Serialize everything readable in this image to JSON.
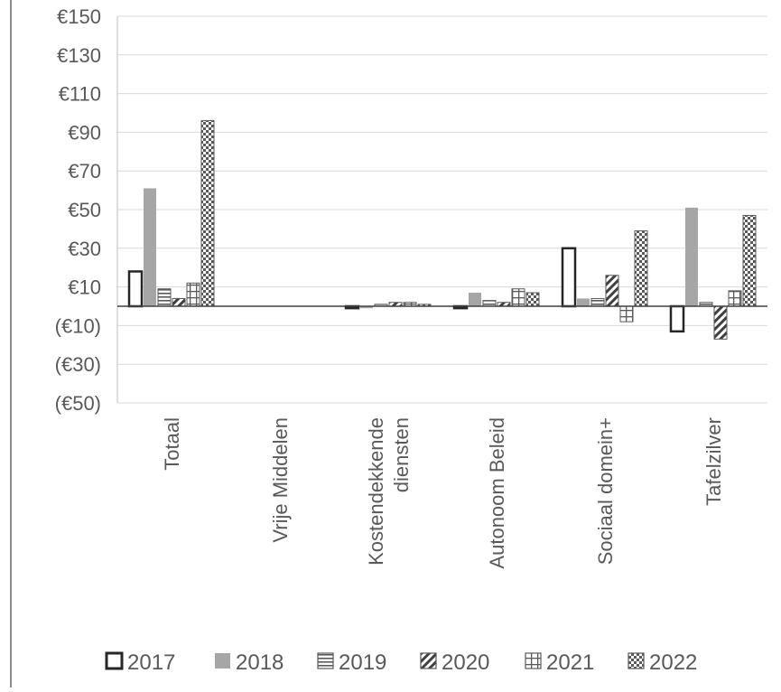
{
  "chart_data": {
    "type": "bar",
    "title": "",
    "xlabel": "",
    "ylabel": "",
    "categories": [
      "Totaal",
      "Vrije Middelen",
      "Kostendekkende diensten",
      "Autonoom Beleid",
      "Sociaal domein+",
      "Tafelzilver"
    ],
    "category_label_lines": [
      [
        "Totaal"
      ],
      [
        "Vrije Middelen"
      ],
      [
        "Kostendekkende",
        "diensten"
      ],
      [
        "Autonoom Beleid"
      ],
      [
        "Sociaal domein+"
      ],
      [
        "Tafelzilver"
      ]
    ],
    "series": [
      {
        "name": "2017",
        "pattern": "outline",
        "color": "#262626",
        "values": [
          18,
          0,
          -1,
          -1,
          30,
          -13
        ]
      },
      {
        "name": "2018",
        "pattern": "solid",
        "color": "#a6a6a6",
        "values": [
          61,
          0,
          -1,
          7,
          4,
          51
        ]
      },
      {
        "name": "2019",
        "pattern": "hlines",
        "color": "#595959",
        "values": [
          9,
          0,
          1,
          3,
          4,
          2
        ]
      },
      {
        "name": "2020",
        "pattern": "diag",
        "color": "#404040",
        "values": [
          4,
          0,
          2,
          2,
          16,
          -17
        ]
      },
      {
        "name": "2021",
        "pattern": "grid",
        "color": "#595959",
        "values": [
          12,
          0,
          2,
          9,
          -8,
          8
        ]
      },
      {
        "name": "2022",
        "pattern": "checker",
        "color": "#595959",
        "values": [
          96,
          0,
          1,
          7,
          39,
          47
        ]
      }
    ],
    "ylim": [
      -50,
      150
    ],
    "yticks": [
      150,
      130,
      110,
      90,
      70,
      50,
      30,
      10,
      -10,
      -30,
      -50
    ],
    "ytick_labels": [
      "€150",
      "€130",
      "€110",
      "€90",
      "€70",
      "€50",
      "€30",
      "€10",
      "(€10)",
      "(€30)",
      "(€50)"
    ],
    "grid": true,
    "legend_position": "bottom"
  }
}
